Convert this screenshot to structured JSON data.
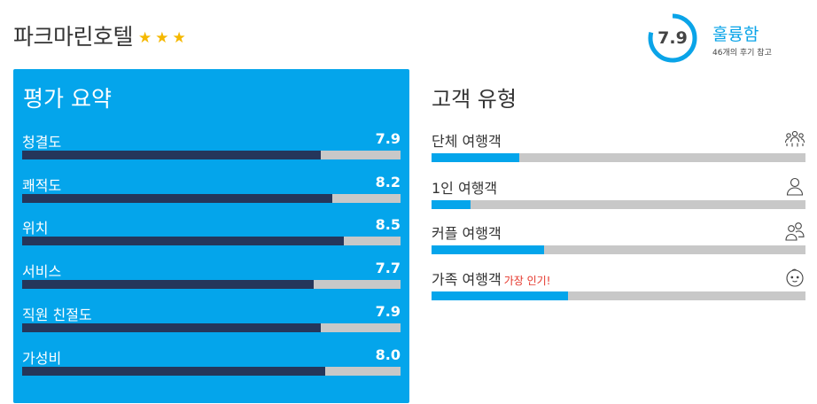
{
  "hotel": {
    "name": "파크마린호텔",
    "stars": 3,
    "star_color": "#f5b800"
  },
  "score": {
    "value": "7.9",
    "fraction": 0.79,
    "word": "훌륭함",
    "reviews": "46개의 후기 참고",
    "ring_color": "#0aa4e8"
  },
  "summary": {
    "title": "평가 요약",
    "items": [
      {
        "label": "청결도",
        "value": "7.9",
        "fraction": 0.79
      },
      {
        "label": "쾌적도",
        "value": "8.2",
        "fraction": 0.82
      },
      {
        "label": "위치",
        "value": "8.5",
        "fraction": 0.85
      },
      {
        "label": "서비스",
        "value": "7.7",
        "fraction": 0.77
      },
      {
        "label": "직원 친절도",
        "value": "7.9",
        "fraction": 0.79
      },
      {
        "label": "가성비",
        "value": "8.0",
        "fraction": 0.8
      }
    ]
  },
  "travellers": {
    "title": "고객 유형",
    "items": [
      {
        "label": "단체 여행객",
        "tag": "",
        "icon": "group-icon",
        "fraction": 0.235
      },
      {
        "label": "1인 여행객",
        "tag": "",
        "icon": "person-icon",
        "fraction": 0.105
      },
      {
        "label": "커플 여행객",
        "tag": "",
        "icon": "couple-icon",
        "fraction": 0.3
      },
      {
        "label": "가족 여행객",
        "tag": "가장 인기!",
        "icon": "baby-face-icon",
        "fraction": 0.365
      }
    ]
  },
  "colors": {
    "panel": "#04a5eb",
    "bar_dark": "#25365a",
    "bar_track": "#c8c8c8",
    "bar_blue": "#04a5eb",
    "tag_red": "#e5352a"
  }
}
